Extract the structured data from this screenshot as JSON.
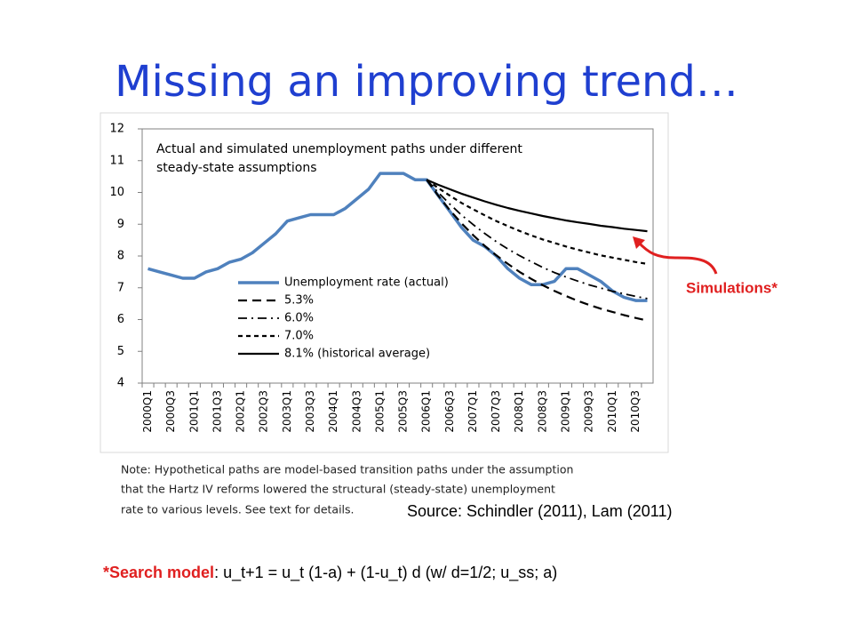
{
  "slide_title": "Missing an improving trend…",
  "chart_data": {
    "type": "line",
    "title": [
      "Actual and simulated unemployment paths under different",
      "steady-state assumptions"
    ],
    "categories": [
      "2000Q1",
      null,
      "2000Q3",
      null,
      "2001Q1",
      null,
      "2001Q3",
      null,
      "2002Q1",
      null,
      "2002Q3",
      null,
      "2003Q1",
      null,
      "2003Q3",
      null,
      "2004Q1",
      null,
      "2004Q3",
      null,
      "2005Q1",
      null,
      "2005Q3",
      null,
      "2006Q1",
      null,
      "2006Q3",
      null,
      "2007Q1",
      null,
      "2007Q3",
      null,
      "2008Q1",
      null,
      "2008Q3",
      null,
      "2009Q1",
      null,
      "2009Q3",
      null,
      "2010Q1",
      null,
      "2010Q3",
      null
    ],
    "series": [
      {
        "name": "Unemployment rate (actual)",
        "color": "#4f81bd",
        "width": 3.5,
        "dash": "none",
        "values": [
          7.6,
          7.5,
          7.4,
          7.3,
          7.3,
          7.5,
          7.6,
          7.8,
          7.9,
          8.1,
          8.4,
          8.7,
          9.1,
          9.2,
          9.3,
          9.3,
          9.3,
          9.5,
          9.8,
          10.1,
          10.6,
          10.6,
          10.6,
          10.4,
          10.4,
          9.9,
          9.4,
          8.9,
          8.5,
          8.3,
          8.0,
          7.6,
          7.3,
          7.1,
          7.1,
          7.2,
          7.6,
          7.6,
          7.4,
          7.2,
          6.9,
          6.7,
          6.6,
          6.6
        ]
      },
      {
        "name": "5.3%",
        "color": "#000000",
        "width": 2.2,
        "dash": "10,6",
        "values": [
          null,
          null,
          null,
          null,
          null,
          null,
          null,
          null,
          null,
          null,
          null,
          null,
          null,
          null,
          null,
          null,
          null,
          null,
          null,
          null,
          null,
          null,
          null,
          null,
          10.4,
          9.9,
          9.44,
          9.03,
          8.66,
          8.32,
          8.02,
          7.75,
          7.5,
          7.28,
          7.08,
          6.9,
          6.74,
          6.59,
          6.46,
          6.34,
          6.24,
          6.14,
          6.05,
          5.97
        ]
      },
      {
        "name": "6.0%",
        "color": "#000000",
        "width": 1.8,
        "dash": "10,5,2,5",
        "values": [
          null,
          null,
          null,
          null,
          null,
          null,
          null,
          null,
          null,
          null,
          null,
          null,
          null,
          null,
          null,
          null,
          null,
          null,
          null,
          null,
          null,
          null,
          null,
          null,
          10.4,
          10.0,
          9.63,
          9.29,
          8.99,
          8.71,
          8.45,
          8.22,
          8.01,
          7.82,
          7.64,
          7.48,
          7.34,
          7.21,
          7.09,
          6.99,
          6.89,
          6.81,
          6.73,
          6.66
        ]
      },
      {
        "name": "7.0%",
        "color": "#000000",
        "width": 2.2,
        "dash": "5,4",
        "values": [
          null,
          null,
          null,
          null,
          null,
          null,
          null,
          null,
          null,
          null,
          null,
          null,
          null,
          null,
          null,
          null,
          null,
          null,
          null,
          null,
          null,
          null,
          null,
          null,
          10.4,
          10.14,
          9.9,
          9.67,
          9.47,
          9.28,
          9.1,
          8.94,
          8.79,
          8.65,
          8.52,
          8.41,
          8.3,
          8.2,
          8.11,
          8.02,
          7.95,
          7.88,
          7.81,
          7.75
        ]
      },
      {
        "name": "8.1% (historical average)",
        "color": "#000000",
        "width": 2.2,
        "dash": "none",
        "values": [
          null,
          null,
          null,
          null,
          null,
          null,
          null,
          null,
          null,
          null,
          null,
          null,
          null,
          null,
          null,
          null,
          null,
          null,
          null,
          null,
          null,
          null,
          null,
          null,
          10.4,
          10.24,
          10.1,
          9.96,
          9.84,
          9.72,
          9.61,
          9.51,
          9.42,
          9.34,
          9.26,
          9.19,
          9.12,
          9.06,
          9.01,
          8.95,
          8.91,
          8.86,
          8.82,
          8.78
        ]
      }
    ],
    "ylim": [
      4,
      12
    ],
    "yticks": [
      4,
      5,
      6,
      7,
      8,
      9,
      10,
      11,
      12
    ],
    "grid": false,
    "note": [
      "Note: Hypothetical paths are model-based transition paths under the assumption",
      "that the Hartz IV reforms lowered the structural (steady-state) unemployment",
      "rate to various levels. See text for details."
    ]
  },
  "annotation": "Simulations*",
  "source": "Source: Schindler (2011), Lam (2011)",
  "footer": {
    "highlight": "*Search model",
    "text": ": u_t+1 = u_t (1-a) + (1-u_t) d (w/ d=1/2; u_ss; a)"
  }
}
